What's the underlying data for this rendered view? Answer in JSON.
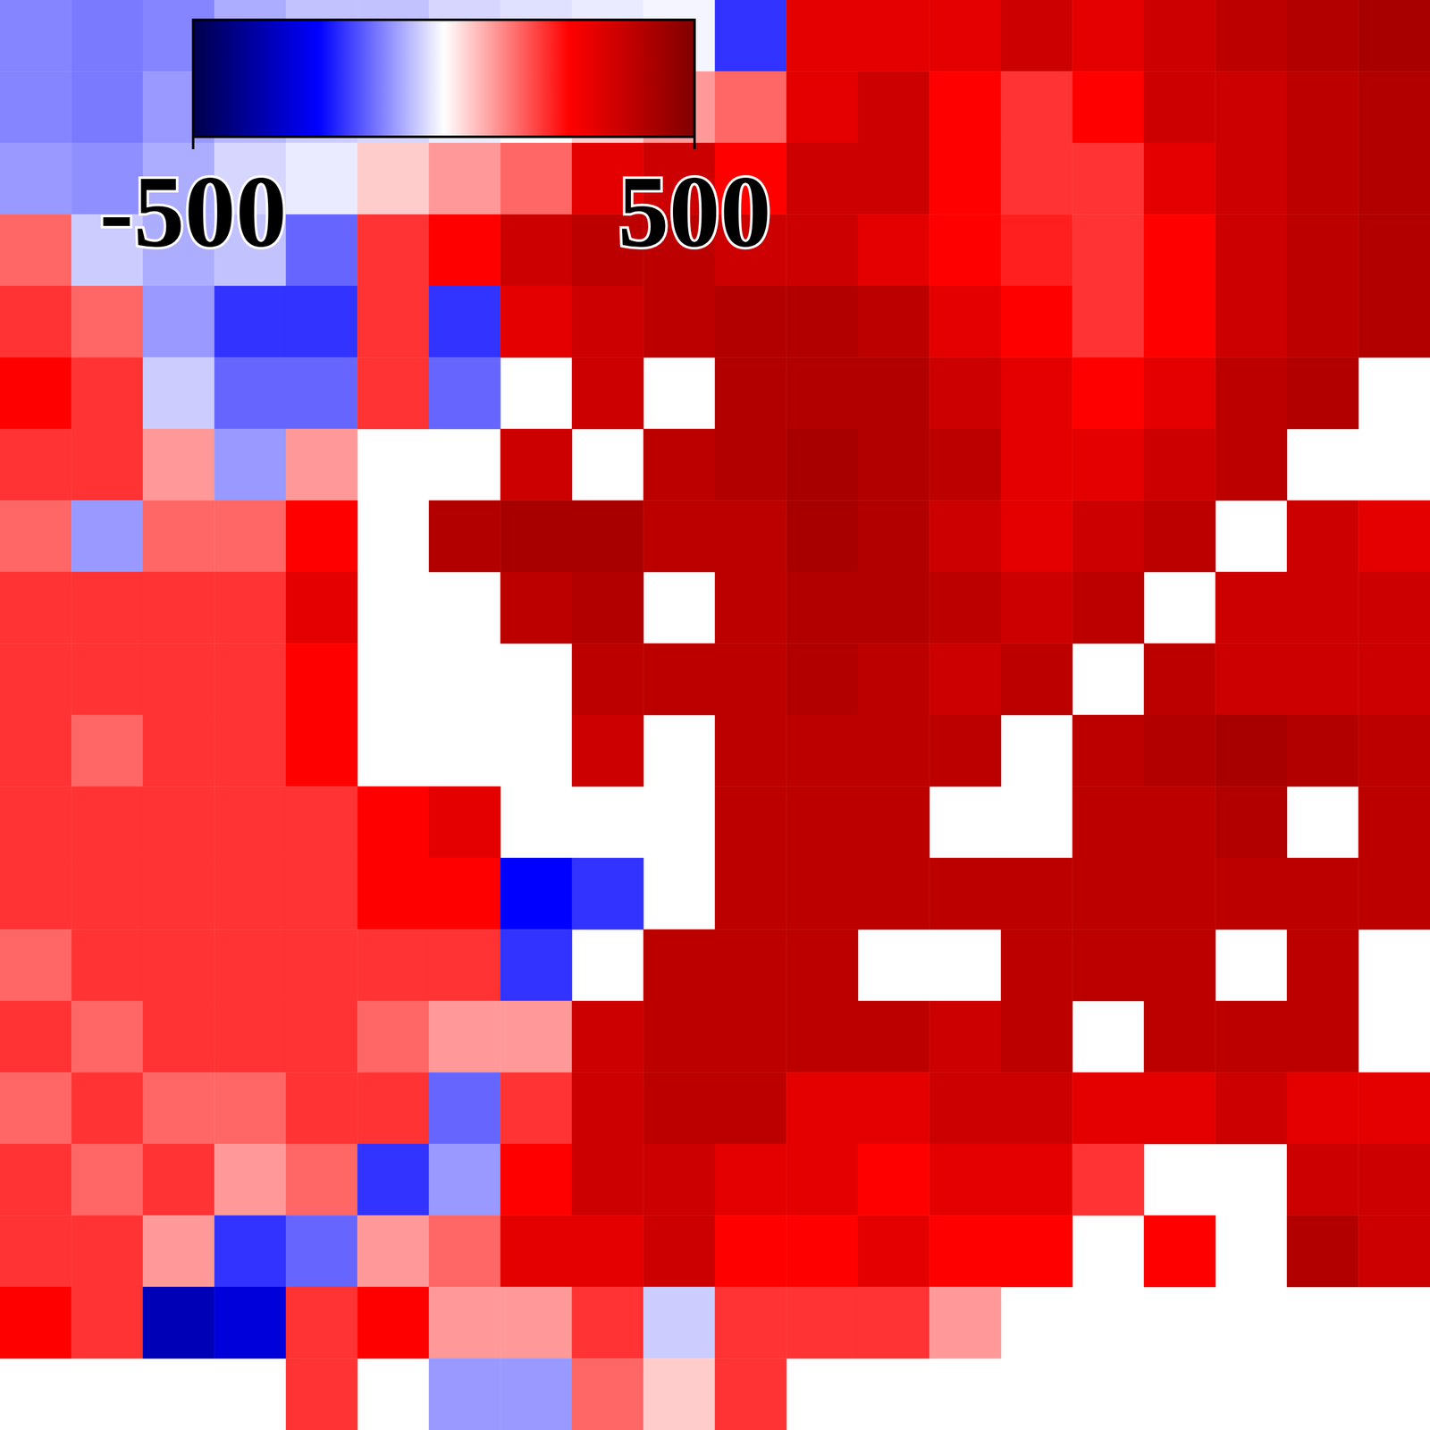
{
  "chart_data": {
    "type": "heatmap",
    "tick_labels": false,
    "colorbar": {
      "range": [
        -500,
        500
      ],
      "ticks": [
        -500,
        500
      ]
    },
    "cells": [
      [
        -120,
        -130,
        -120,
        -80,
        -60,
        -60,
        -40,
        -30,
        -20,
        -10,
        -200,
        300,
        300,
        300,
        350,
        300,
        350,
        380,
        400,
        420
      ],
      [
        -120,
        -130,
        -100,
        -70,
        -50,
        -40,
        -20,
        0,
        50,
        100,
        150,
        300,
        350,
        250,
        200,
        250,
        350,
        350,
        380,
        400
      ],
      [
        -100,
        -110,
        -80,
        -40,
        -20,
        50,
        100,
        150,
        300,
        350,
        250,
        350,
        350,
        250,
        200,
        200,
        300,
        350,
        380,
        400
      ],
      [
        150,
        -50,
        -80,
        -60,
        -150,
        200,
        250,
        350,
        380,
        380,
        350,
        350,
        300,
        250,
        220,
        200,
        250,
        350,
        380,
        400
      ],
      [
        200,
        150,
        -100,
        -200,
        -200,
        200,
        -200,
        300,
        350,
        380,
        400,
        400,
        380,
        300,
        250,
        200,
        250,
        350,
        380,
        400
      ],
      [
        250,
        200,
        -50,
        -150,
        -150,
        200,
        -150,
        null,
        350,
        null,
        400,
        400,
        400,
        350,
        300,
        250,
        300,
        380,
        400,
        null
      ],
      [
        200,
        200,
        100,
        -100,
        100,
        null,
        null,
        350,
        null,
        380,
        400,
        420,
        400,
        380,
        300,
        300,
        350,
        380,
        null,
        null
      ],
      [
        150,
        -100,
        150,
        150,
        250,
        null,
        400,
        420,
        420,
        380,
        380,
        420,
        400,
        350,
        300,
        350,
        380,
        null,
        350,
        300
      ],
      [
        200,
        200,
        200,
        200,
        300,
        null,
        null,
        380,
        400,
        null,
        380,
        400,
        400,
        380,
        350,
        380,
        null,
        350,
        350,
        350
      ],
      [
        200,
        200,
        200,
        200,
        250,
        null,
        null,
        null,
        380,
        380,
        380,
        400,
        380,
        350,
        380,
        null,
        380,
        350,
        350,
        350
      ],
      [
        200,
        150,
        200,
        200,
        250,
        null,
        null,
        null,
        350,
        null,
        380,
        380,
        380,
        380,
        null,
        380,
        400,
        420,
        400,
        380
      ],
      [
        200,
        200,
        200,
        200,
        200,
        250,
        300,
        null,
        null,
        null,
        380,
        380,
        380,
        null,
        null,
        380,
        380,
        400,
        null,
        380
      ],
      [
        200,
        200,
        200,
        200,
        200,
        250,
        250,
        -250,
        -200,
        null,
        380,
        380,
        380,
        380,
        380,
        380,
        380,
        380,
        380,
        380
      ],
      [
        150,
        200,
        200,
        200,
        200,
        200,
        200,
        -200,
        null,
        380,
        380,
        380,
        null,
        null,
        380,
        380,
        380,
        null,
        380,
        null
      ],
      [
        200,
        150,
        200,
        200,
        200,
        150,
        100,
        100,
        350,
        380,
        380,
        380,
        380,
        350,
        380,
        null,
        380,
        380,
        380,
        null
      ],
      [
        150,
        200,
        150,
        150,
        200,
        200,
        -150,
        200,
        350,
        380,
        380,
        300,
        300,
        350,
        350,
        300,
        300,
        350,
        300,
        300
      ],
      [
        200,
        150,
        200,
        100,
        150,
        -200,
        -100,
        250,
        350,
        350,
        300,
        300,
        250,
        300,
        300,
        200,
        null,
        null,
        350,
        350
      ],
      [
        200,
        200,
        100,
        -200,
        -150,
        100,
        150,
        300,
        300,
        350,
        250,
        250,
        300,
        250,
        250,
        null,
        250,
        null,
        400,
        350
      ],
      [
        250,
        200,
        -350,
        -300,
        200,
        250,
        100,
        100,
        200,
        -50,
        200,
        200,
        200,
        100,
        null,
        null,
        null,
        null,
        null,
        null
      ],
      [
        null,
        null,
        null,
        null,
        200,
        null,
        -100,
        -100,
        150,
        50,
        200,
        null,
        null,
        null,
        null,
        null,
        null,
        null,
        null,
        null
      ]
    ]
  }
}
